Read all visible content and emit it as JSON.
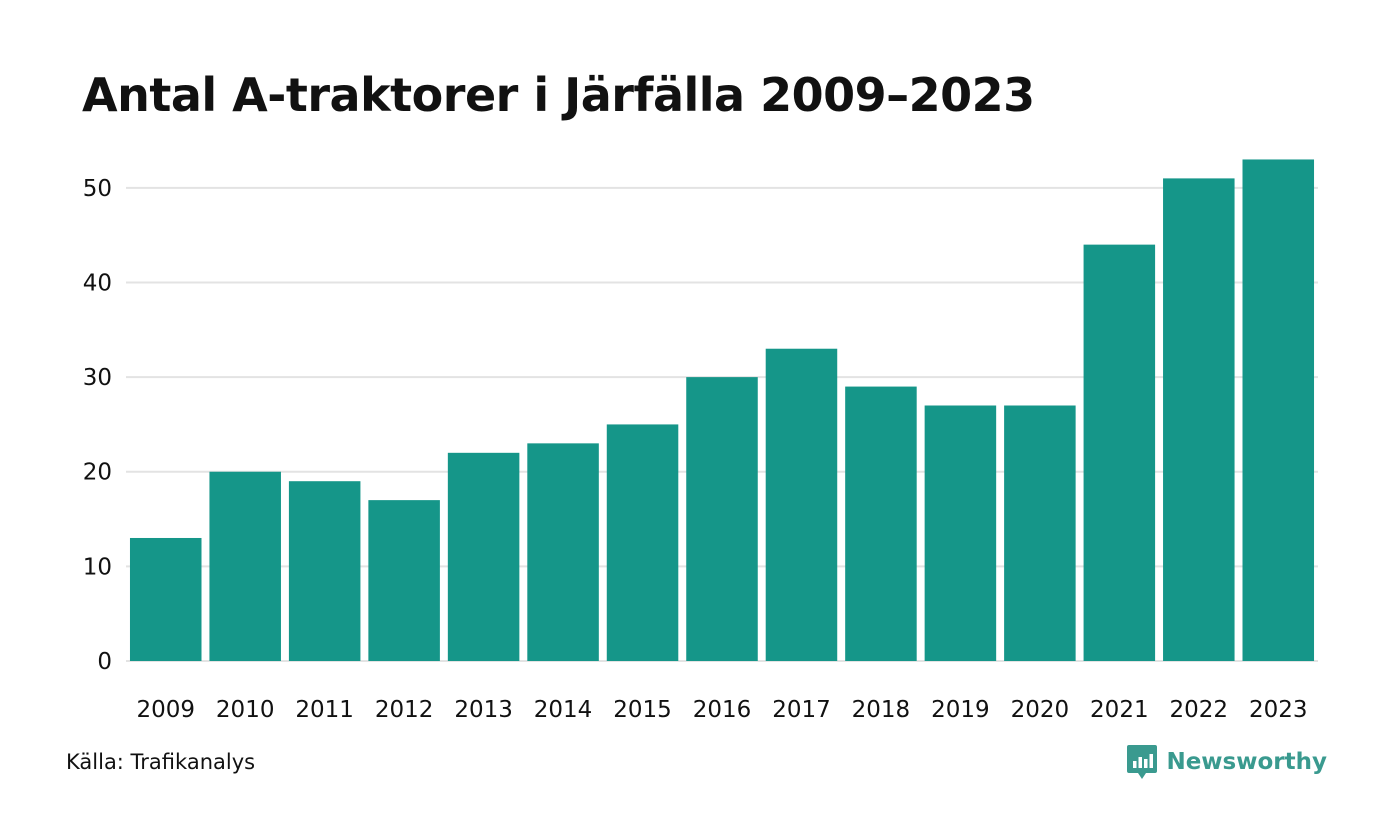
{
  "title": "Antal A-traktorer i Järfälla 2009–2023",
  "source": "Källa: Trafikanalys",
  "brand": {
    "name": "Newsworthy",
    "icon": "newsworthy-logo-icon"
  },
  "colors": {
    "bar": "#159689",
    "grid": "#e3e3e3",
    "brand": "#3a9a8f"
  },
  "chart_data": {
    "type": "bar",
    "title": "Antal A-traktorer i Järfälla 2009–2023",
    "xlabel": "",
    "ylabel": "",
    "categories": [
      "2009",
      "2010",
      "2011",
      "2012",
      "2013",
      "2014",
      "2015",
      "2016",
      "2017",
      "2018",
      "2019",
      "2020",
      "2021",
      "2022",
      "2023"
    ],
    "values": [
      13,
      20,
      19,
      17,
      22,
      23,
      25,
      30,
      33,
      29,
      27,
      27,
      44,
      51,
      53
    ],
    "ylim": [
      0,
      54
    ],
    "yticks": [
      0,
      10,
      20,
      30,
      40,
      50
    ],
    "grid": true,
    "legend": "none"
  }
}
